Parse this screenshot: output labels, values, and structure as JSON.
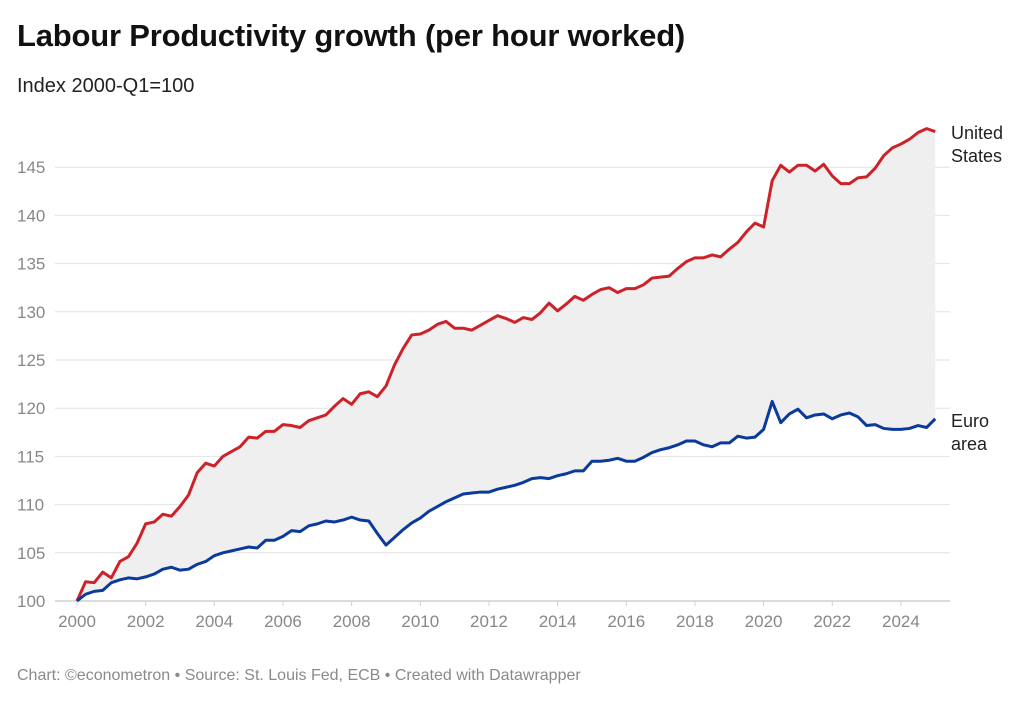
{
  "chart_data": {
    "type": "line",
    "title": "Labour Productivity growth (per hour worked)",
    "subtitle": "Index 2000-Q1=100",
    "footer": "Chart: ©econometron • Source: St. Louis Fed, ECB • Created with Datawrapper",
    "xlabel": "",
    "ylabel": "",
    "x_start": 2000,
    "x_step": 0.25,
    "xlim": [
      2000,
      2025
    ],
    "ylim": [
      100,
      149
    ],
    "x_ticks": [
      "2000",
      "2002",
      "2004",
      "2006",
      "2008",
      "2010",
      "2012",
      "2014",
      "2016",
      "2018",
      "2020",
      "2022",
      "2024"
    ],
    "y_ticks": [
      "100",
      "105",
      "110",
      "115",
      "120",
      "125",
      "130",
      "135",
      "140",
      "145"
    ],
    "grid": true,
    "legend": "direct labels at right",
    "fill_between": "#efefef",
    "series": [
      {
        "name": "United States",
        "label_lines": [
          "United",
          "States"
        ],
        "color": "#cc2229",
        "values": [
          100,
          102.0,
          101.9,
          103.0,
          102.4,
          104.1,
          104.6,
          106.0,
          108.0,
          108.2,
          109.0,
          108.8,
          109.8,
          111.0,
          113.3,
          114.3,
          114.0,
          115.0,
          115.5,
          116.0,
          117.0,
          116.9,
          117.6,
          117.6,
          118.3,
          118.2,
          118.0,
          118.7,
          119.0,
          119.3,
          120.2,
          121.0,
          120.4,
          121.5,
          121.7,
          121.2,
          122.3,
          124.5,
          126.2,
          127.6,
          127.7,
          128.1,
          128.7,
          129.0,
          128.3,
          128.3,
          128.1,
          128.6,
          129.1,
          129.6,
          129.3,
          128.9,
          129.4,
          129.2,
          129.9,
          130.9,
          130.1,
          130.8,
          131.6,
          131.2,
          131.8,
          132.3,
          132.5,
          132.0,
          132.4,
          132.4,
          132.8,
          133.5,
          133.6,
          133.7,
          134.5,
          135.2,
          135.6,
          135.6,
          135.9,
          135.7,
          136.5,
          137.2,
          138.3,
          139.2,
          138.8,
          143.6,
          145.2,
          144.5,
          145.2,
          145.2,
          144.6,
          145.3,
          144.1,
          143.3,
          143.3,
          143.9,
          144.0,
          144.9,
          146.2,
          147.0,
          147.4,
          147.9,
          148.6,
          149.0,
          148.7
        ]
      },
      {
        "name": "Euro area",
        "label_lines": [
          "Euro",
          "area"
        ],
        "color": "#0a3a9c",
        "values": [
          100,
          100.7,
          101.0,
          101.1,
          101.9,
          102.2,
          102.4,
          102.3,
          102.5,
          102.8,
          103.3,
          103.5,
          103.2,
          103.3,
          103.8,
          104.1,
          104.7,
          105.0,
          105.2,
          105.4,
          105.6,
          105.5,
          106.3,
          106.3,
          106.7,
          107.3,
          107.2,
          107.8,
          108.0,
          108.3,
          108.2,
          108.4,
          108.7,
          108.4,
          108.3,
          107.0,
          105.8,
          106.6,
          107.4,
          108.1,
          108.6,
          109.3,
          109.8,
          110.3,
          110.7,
          111.1,
          111.2,
          111.3,
          111.3,
          111.6,
          111.8,
          112.0,
          112.3,
          112.7,
          112.8,
          112.7,
          113.0,
          113.2,
          113.5,
          113.5,
          114.5,
          114.5,
          114.6,
          114.8,
          114.5,
          114.5,
          114.9,
          115.4,
          115.7,
          115.9,
          116.2,
          116.6,
          116.6,
          116.2,
          116.0,
          116.4,
          116.4,
          117.1,
          116.9,
          117.0,
          117.8,
          120.7,
          118.5,
          119.4,
          119.9,
          119.0,
          119.3,
          119.4,
          118.9,
          119.3,
          119.5,
          119.1,
          118.2,
          118.3,
          117.9,
          117.8,
          117.8,
          117.9,
          118.2,
          118.0,
          118.9
        ]
      }
    ]
  }
}
